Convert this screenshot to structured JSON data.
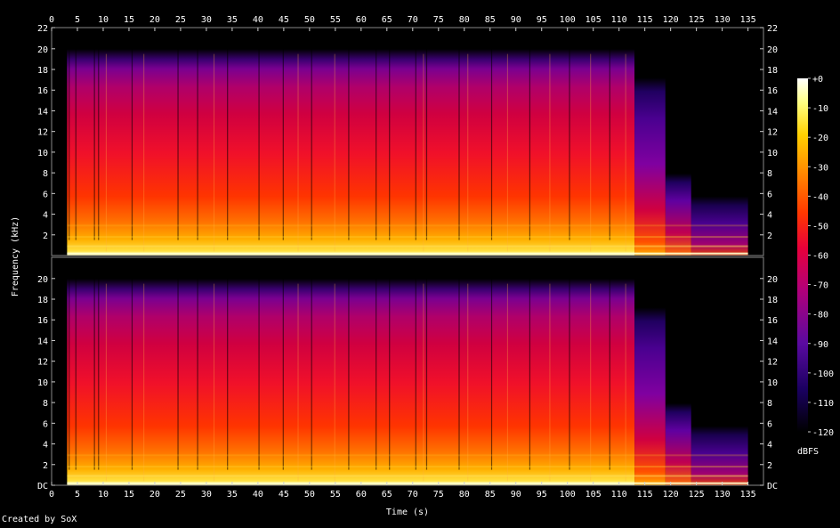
{
  "chart_data": {
    "type": "heatmap",
    "subtype": "spectrogram",
    "channels": 2,
    "xlabel": "Time (s)",
    "ylabel": "Frequency (kHz)",
    "x_ticks": [
      0,
      5,
      10,
      15,
      20,
      25,
      30,
      35,
      40,
      45,
      50,
      55,
      60,
      65,
      70,
      75,
      80,
      85,
      90,
      95,
      100,
      105,
      110,
      115,
      120,
      125,
      130,
      135
    ],
    "xlim": [
      0,
      138
    ],
    "y_ticks_top": [
      "22",
      "20",
      "18",
      "16",
      "14",
      "12",
      "10",
      "8",
      "6",
      "4",
      "2"
    ],
    "y_ticks_top_values": [
      22,
      20,
      18,
      16,
      14,
      12,
      10,
      8,
      6,
      4,
      2
    ],
    "y_ticks_bottom": [
      "20",
      "18",
      "16",
      "14",
      "12",
      "10",
      "8",
      "6",
      "4",
      "2",
      "DC"
    ],
    "y_ticks_bottom_values": [
      20,
      18,
      16,
      14,
      12,
      10,
      8,
      6,
      4,
      2,
      0
    ],
    "ylim": [
      0,
      22.05
    ],
    "colorbar": {
      "label": "dBFS",
      "ticks": [
        "+0",
        "-10",
        "-20",
        "-30",
        "-40",
        "-50",
        "-60",
        "-70",
        "-80",
        "-90",
        "-100",
        "-110",
        "-120"
      ],
      "range": [
        -120,
        0
      ]
    },
    "content_notes": {
      "signal_start_s": 3,
      "bandlimit_khz_main": 20,
      "bandlimit_end_s": 113,
      "fade_16khz_until_s": 119,
      "signal_end_s": 135
    },
    "colors": [
      "#000000",
      "#1a0060",
      "#5a0aa0",
      "#b0007a",
      "#e8003a",
      "#ff3800",
      "#ff8000",
      "#ffd000",
      "#ffff80",
      "#ffffff"
    ]
  },
  "footer": {
    "credit": "Created by SoX"
  }
}
